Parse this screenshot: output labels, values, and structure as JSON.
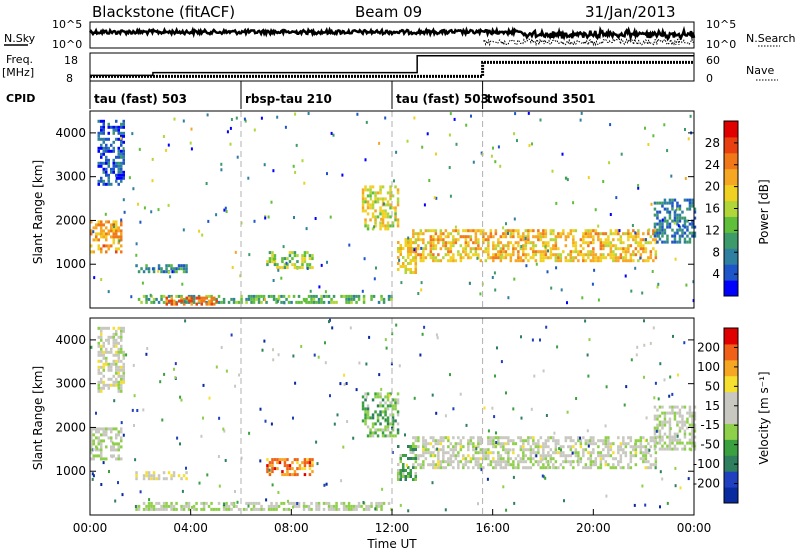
{
  "header": {
    "station": "Blackstone (fitACF)",
    "beam": "Beam 09",
    "date": "31/Jan/2013"
  },
  "labels": {
    "nsky": "N.Sky",
    "nsearch": "N.Search",
    "freq_line1": "Freq.",
    "freq_line2": "[MHz]",
    "nave": "Nave",
    "cpid": "CPID",
    "noise_tick_high_left": "10^5",
    "noise_tick_low_left": "10^0",
    "noise_tick_high_right": "10^5",
    "noise_tick_low_right": "10^0",
    "freq_tick_high": "18",
    "freq_tick_low": "8",
    "nave_tick_high": "60",
    "nave_tick_low": "0"
  },
  "cpid_segments": [
    {
      "label": "tau (fast) 503",
      "start_hour": 0
    },
    {
      "label": "rbsp-tau 210",
      "start_hour": 6
    },
    {
      "label": "tau (fast) 503",
      "start_hour": 12
    },
    {
      "label": "twofsound 3501",
      "start_hour": 15.6
    }
  ],
  "chart_data": [
    {
      "type": "heatmap",
      "panel": "power",
      "ylabel": "Slant Range [km]",
      "xlabel": "",
      "xlim": [
        0,
        24
      ],
      "ylim": [
        0,
        4500
      ],
      "yticks": [
        1000,
        2000,
        3000,
        4000
      ],
      "colorbar": {
        "label": "Power [dB]",
        "ticks": [
          "4",
          "8",
          "12",
          "16",
          "20",
          "24",
          "28"
        ],
        "colors": [
          "#0000ff",
          "#1e55c8",
          "#2f7fa0",
          "#3d9a6a",
          "#5fbf3a",
          "#b0d63a",
          "#f0d020",
          "#f5a623",
          "#f07818",
          "#e84010",
          "#e00000"
        ]
      },
      "regions": [
        {
          "x0": 0.0,
          "x1": 1.2,
          "y0": 1300,
          "y1": 2000,
          "level": 0.72
        },
        {
          "x0": 0.3,
          "x1": 1.3,
          "y0": 2800,
          "y1": 4300,
          "level": 0.12
        },
        {
          "x0": 1.8,
          "x1": 3.8,
          "y0": 850,
          "y1": 1000,
          "level": 0.25
        },
        {
          "x0": 1.8,
          "x1": 12.0,
          "y0": 120,
          "y1": 300,
          "level": 0.35
        },
        {
          "x0": 3.0,
          "x1": 5.0,
          "y0": 120,
          "y1": 260,
          "level": 0.8
        },
        {
          "x0": 7.0,
          "x1": 8.8,
          "y0": 900,
          "y1": 1300,
          "level": 0.45
        },
        {
          "x0": 10.8,
          "x1": 12.2,
          "y0": 1800,
          "y1": 2800,
          "level": 0.55
        },
        {
          "x0": 12.2,
          "x1": 12.9,
          "y0": 800,
          "y1": 1600,
          "level": 0.6
        },
        {
          "x0": 12.8,
          "x1": 22.5,
          "y0": 1100,
          "y1": 1800,
          "level": 0.65
        },
        {
          "x0": 22.4,
          "x1": 24.0,
          "y0": 1500,
          "y1": 2500,
          "level": 0.2
        }
      ]
    },
    {
      "type": "heatmap",
      "panel": "velocity",
      "ylabel": "Slant Range [km]",
      "xlabel": "Time UT",
      "xlim": [
        0,
        24
      ],
      "ylim": [
        0,
        4500
      ],
      "yticks": [
        1000,
        2000,
        3000,
        4000
      ],
      "xticks": [
        "00:00",
        "04:00",
        "08:00",
        "12:00",
        "16:00",
        "20:00",
        "00:00"
      ],
      "colorbar": {
        "label": "Velocity [m s⁻¹]",
        "ticks": [
          "200",
          "100",
          "50",
          "15",
          "-15",
          "-50",
          "-100",
          "-200"
        ],
        "colors": [
          "#0a2aa0",
          "#2040c0",
          "#2f7f5f",
          "#3aa040",
          "#8fd04a",
          "#c8c8c0",
          "#c8c8c0",
          "#f5e030",
          "#f5a623",
          "#f06018",
          "#e00000"
        ]
      },
      "regions": [
        {
          "x0": 0.0,
          "x1": 1.2,
          "y0": 1300,
          "y1": 2000,
          "level": 0.5
        },
        {
          "x0": 0.3,
          "x1": 1.3,
          "y0": 2800,
          "y1": 4300,
          "level": 0.55
        },
        {
          "x0": 1.8,
          "x1": 3.8,
          "y0": 850,
          "y1": 1000,
          "level": 0.6
        },
        {
          "x0": 1.8,
          "x1": 12.0,
          "y0": 120,
          "y1": 300,
          "level": 0.5
        },
        {
          "x0": 7.0,
          "x1": 8.8,
          "y0": 900,
          "y1": 1300,
          "level": 0.85
        },
        {
          "x0": 10.8,
          "x1": 12.2,
          "y0": 1800,
          "y1": 2800,
          "level": 0.35
        },
        {
          "x0": 12.2,
          "x1": 12.9,
          "y0": 800,
          "y1": 1600,
          "level": 0.35
        },
        {
          "x0": 12.8,
          "x1": 22.5,
          "y0": 1100,
          "y1": 1800,
          "level": 0.52
        },
        {
          "x0": 22.4,
          "x1": 24.0,
          "y0": 1500,
          "y1": 2500,
          "level": 0.5
        }
      ]
    }
  ],
  "summary_panels": {
    "freq_step": [
      {
        "hour": 0,
        "mhz": 10
      },
      {
        "hour": 2.5,
        "mhz": 11
      },
      {
        "hour": 13,
        "mhz": 17
      }
    ],
    "nave_step": [
      {
        "hour": 0,
        "count": 10
      },
      {
        "hour": 15.6,
        "count": 40
      }
    ],
    "freq_range": [
      8,
      18
    ],
    "nave_range": [
      0,
      60
    ],
    "noise_range": [
      0,
      5
    ]
  }
}
